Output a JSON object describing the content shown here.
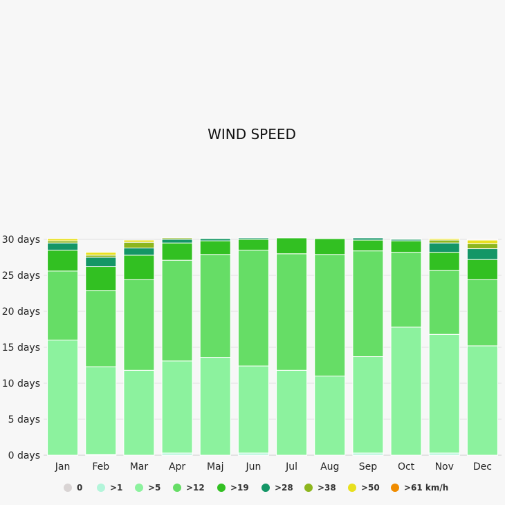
{
  "chart_data": {
    "type": "bar",
    "stacked": true,
    "title": "WIND SPEED",
    "xlabel": "",
    "ylabel": "",
    "ylim": [
      0,
      30
    ],
    "y_ticks": [
      "0 days",
      "5 days",
      "10 days",
      "15 days",
      "20 days",
      "25 days",
      "30 days"
    ],
    "grid": true,
    "legend_position": "bottom",
    "categories": [
      "Jan",
      "Feb",
      "Mar",
      "Apr",
      "Maj",
      "Jun",
      "Jul",
      "Aug",
      "Sep",
      "Oct",
      "Nov",
      "Dec"
    ],
    "series": [
      {
        "name": "0",
        "color": "#d9d4d4",
        "values": [
          0,
          0,
          0,
          0,
          0,
          0,
          0,
          0,
          0,
          0,
          0,
          0
        ]
      },
      {
        "name": ">1",
        "color": "#b3f5da",
        "values": [
          0,
          0.1,
          0,
          0.3,
          0,
          0.3,
          0,
          0,
          0.3,
          0,
          0.3,
          0
        ]
      },
      {
        "name": ">5",
        "color": "#8cf29e",
        "values": [
          16,
          12.2,
          11.8,
          12.8,
          13.6,
          12.1,
          11.8,
          11,
          13.4,
          17.8,
          16.5,
          15.2
        ]
      },
      {
        "name": ">12",
        "color": "#66dd66",
        "values": [
          9.6,
          10.6,
          12.6,
          14,
          14.3,
          16.1,
          16.2,
          16.9,
          14.7,
          10.4,
          8.9,
          9.2
        ]
      },
      {
        "name": ">19",
        "color": "#32c022",
        "values": [
          2.9,
          3.3,
          3.4,
          2.4,
          1.9,
          1.5,
          2.2,
          2.2,
          1.5,
          1.6,
          2.5,
          2.8
        ]
      },
      {
        "name": ">28",
        "color": "#149666",
        "values": [
          1,
          1.3,
          1,
          0.5,
          0.3,
          0.2,
          0,
          0,
          0.3,
          0.2,
          1.3,
          1.5
        ]
      },
      {
        "name": ">38",
        "color": "#8db61e",
        "values": [
          0.3,
          0.3,
          0.8,
          0.2,
          0.1,
          0,
          0,
          0,
          0,
          0.1,
          0.4,
          0.7
        ]
      },
      {
        "name": ">50",
        "color": "#e8e01e",
        "values": [
          0.3,
          0.4,
          0.3,
          0,
          0,
          0,
          0,
          0,
          0,
          0,
          0.2,
          0.5
        ]
      },
      {
        "name": ">61 km/h",
        "color": "#f08c00",
        "values": [
          0,
          0,
          0,
          0,
          0,
          0,
          0,
          0,
          0,
          0,
          0,
          0.1
        ]
      }
    ]
  }
}
